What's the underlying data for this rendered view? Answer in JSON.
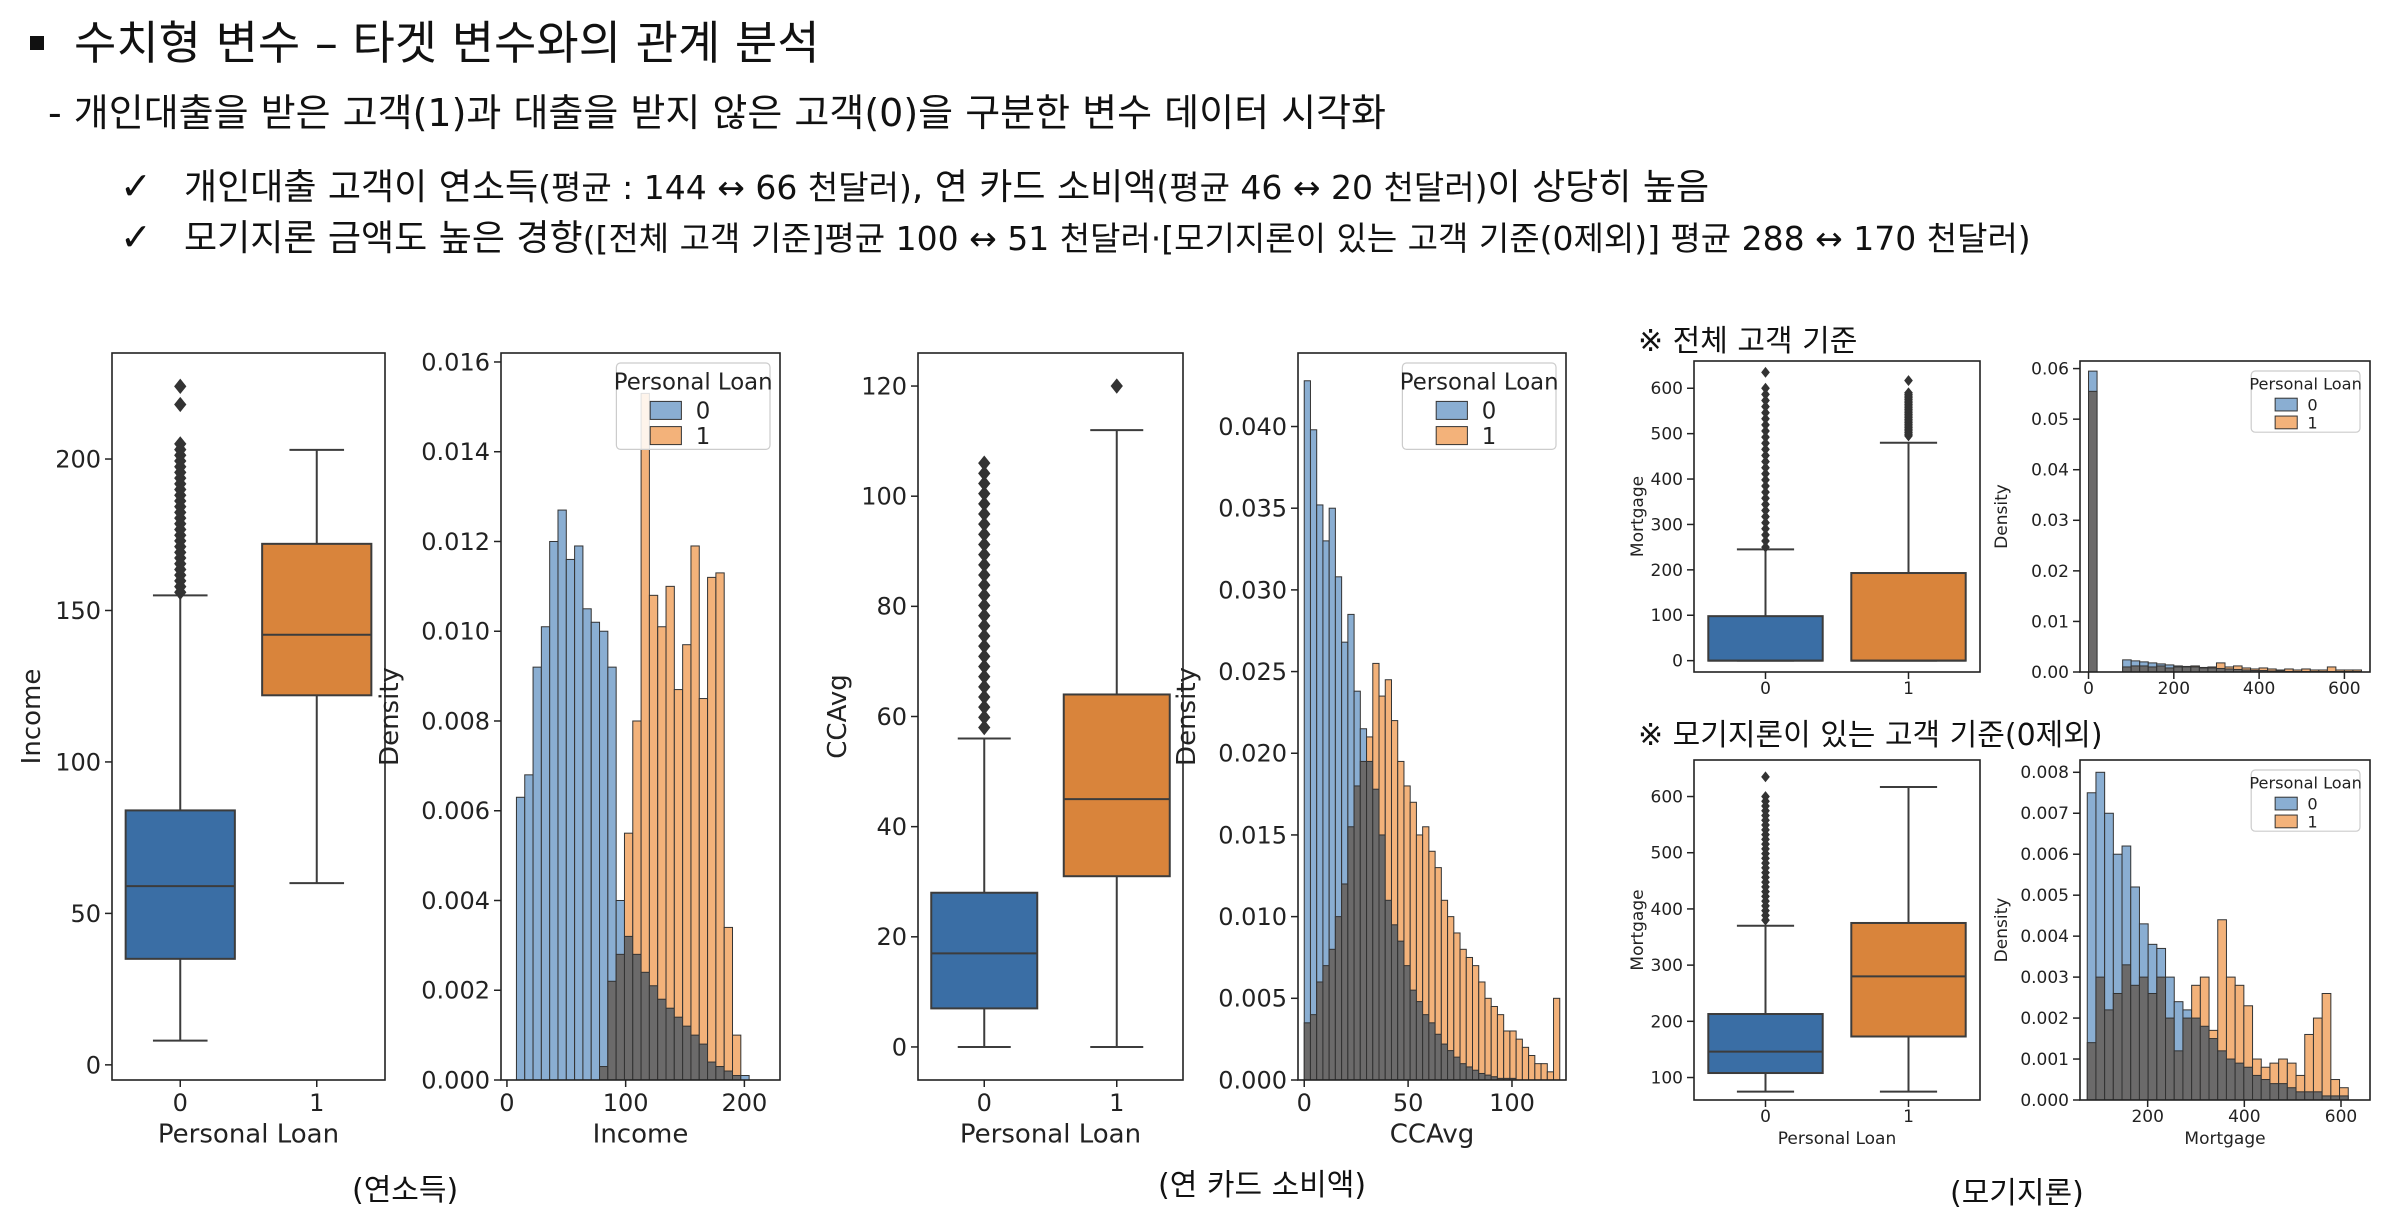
{
  "header": {
    "title": "수치형 변수 – 타겟 변수와의 관계 분석",
    "subtitle": "- 개인대출을 받은 고객(1)과 대출을 받지 않은 고객(0)을 구분한 변수 데이터 시각화",
    "check1_main": "개인대출 고객이 연소득",
    "check1_detail1": "(평균 : 144 ↔ 66 천달러)",
    "check1_mid": ", 연 카드 소비액",
    "check1_detail2": "(평균 46 ↔ 20 천달러)",
    "check1_end": "이 상당히 높음",
    "check2_main": "모기지론 금액도 높은 경향",
    "check2_detail": "([전체 고객 기준]평균 100 ↔ 51 천달러·[모기지론이 있는 고객 기준(0제외)] 평균 288 ↔ 170 천달러)"
  },
  "captions": {
    "income": "(연소득)",
    "ccavg": "(연 카드 소비액)",
    "mortgage": "(모기지론)",
    "note_all": "※ 전체 고객 기준",
    "note_nonzero": "※ 모기지론이 있는 고객 기준(0제외)"
  },
  "colors": {
    "blue_box": "#3a6ea5",
    "orange_box": "#d9843b",
    "blue_hist": "#8aaed2",
    "orange_hist": "#f3b27a",
    "overlap": "#6b6a6a"
  },
  "chart_data": [
    {
      "id": "income-box",
      "type": "box",
      "xlabel": "Personal Loan",
      "ylabel": "Income",
      "categories": [
        "0",
        "1"
      ],
      "ylim": [
        -5,
        235
      ],
      "yticks": [
        0,
        50,
        100,
        150,
        200
      ],
      "boxes": [
        {
          "category": "0",
          "whisker_low": 8,
          "q1": 35,
          "median": 59,
          "q3": 84,
          "whisker_high": 155,
          "outliers_from": 156,
          "outliers_to": 205,
          "top_outliers": [
            218,
            224
          ]
        },
        {
          "category": "1",
          "whisker_low": 60,
          "q1": 122,
          "median": 142,
          "q3": 172,
          "whisker_high": 203,
          "outliers_from": null,
          "outliers_to": null,
          "top_outliers": []
        }
      ]
    },
    {
      "id": "income-hist",
      "type": "histogram",
      "xlabel": "Income",
      "ylabel": "Density",
      "xlim": [
        -5,
        230
      ],
      "ylim": [
        0,
        0.0162
      ],
      "xticks": [
        0,
        100,
        200
      ],
      "yticks": [
        0.0,
        0.002,
        0.004,
        0.006,
        0.008,
        0.01,
        0.012,
        0.014,
        0.016
      ],
      "bin_start": 8,
      "bin_width": 7,
      "legend": {
        "title": "Personal Loan",
        "entries": [
          "0",
          "1"
        ],
        "position": "top-right"
      },
      "series": [
        {
          "name": "0",
          "values": [
            0.0063,
            0.0068,
            0.0092,
            0.0101,
            0.012,
            0.0127,
            0.0116,
            0.0119,
            0.0105,
            0.0102,
            0.01,
            0.0092,
            0.004,
            0.0032,
            0.0028,
            0.0024,
            0.0021,
            0.0018,
            0.0016,
            0.0014,
            0.0012,
            0.001,
            0.0008,
            0.0004,
            0.0003,
            0.0002,
            0.0001,
            0.0001
          ]
        },
        {
          "name": "1",
          "values": [
            0,
            0,
            0,
            0,
            0,
            0,
            0,
            0,
            0,
            0,
            0.0003,
            0.0022,
            0.0028,
            0.0055,
            0.008,
            0.0153,
            0.0108,
            0.0101,
            0.011,
            0.0087,
            0.0097,
            0.0119,
            0.0085,
            0.0112,
            0.0113,
            0.0034,
            0.001,
            0
          ]
        }
      ]
    },
    {
      "id": "ccavg-box",
      "type": "box",
      "xlabel": "Personal Loan",
      "ylabel": "CCAvg",
      "categories": [
        "0",
        "1"
      ],
      "ylim": [
        -6,
        126
      ],
      "yticks": [
        0,
        20,
        40,
        60,
        80,
        100,
        120
      ],
      "boxes": [
        {
          "category": "0",
          "whisker_low": 0,
          "q1": 7,
          "median": 17,
          "q3": 28,
          "whisker_high": 56,
          "outliers_from": 58,
          "outliers_to": 106,
          "top_outliers": []
        },
        {
          "category": "1",
          "whisker_low": 0,
          "q1": 31,
          "median": 45,
          "q3": 64,
          "whisker_high": 112,
          "outliers_from": null,
          "outliers_to": null,
          "top_outliers": [
            120
          ]
        }
      ]
    },
    {
      "id": "ccavg-hist",
      "type": "histogram",
      "xlabel": "CCAvg",
      "ylabel": "Density",
      "xlim": [
        -3,
        126
      ],
      "ylim": [
        0,
        0.0445
      ],
      "xticks": [
        0,
        50,
        100
      ],
      "yticks": [
        0.0,
        0.005,
        0.01,
        0.015,
        0.02,
        0.025,
        0.03,
        0.035,
        0.04
      ],
      "bin_start": 0,
      "bin_width": 3,
      "legend": {
        "title": "Personal Loan",
        "entries": [
          "0",
          "1"
        ],
        "position": "top-right"
      },
      "series": [
        {
          "name": "0",
          "values": [
            0.0428,
            0.0398,
            0.0352,
            0.033,
            0.035,
            0.0308,
            0.0268,
            0.0285,
            0.0238,
            0.0215,
            0.0195,
            0.0178,
            0.015,
            0.011,
            0.0095,
            0.0085,
            0.007,
            0.0055,
            0.0048,
            0.004,
            0.0035,
            0.0028,
            0.0022,
            0.0018,
            0.0014,
            0.001,
            0.0008,
            0.0006,
            0.0004,
            0.0003,
            0.0002,
            0.0001,
            0.0001,
            0.0001,
            0.0,
            0.0,
            0.0,
            0.0,
            0.0,
            0.0,
            0.0
          ]
        },
        {
          "name": "1",
          "values": [
            0.0035,
            0.004,
            0.006,
            0.007,
            0.008,
            0.01,
            0.012,
            0.0155,
            0.018,
            0.0195,
            0.021,
            0.0255,
            0.0235,
            0.0245,
            0.022,
            0.0195,
            0.018,
            0.017,
            0.015,
            0.0155,
            0.014,
            0.013,
            0.011,
            0.01,
            0.009,
            0.008,
            0.0075,
            0.007,
            0.006,
            0.005,
            0.0045,
            0.004,
            0.003,
            0.003,
            0.0025,
            0.002,
            0.0015,
            0.001,
            0.001,
            0.0005,
            0.005
          ]
        }
      ]
    },
    {
      "id": "mortgage-all-box",
      "type": "box",
      "xlabel": "",
      "ylabel": "Mortgage",
      "categories": [
        "0",
        "1"
      ],
      "ylim": [
        -25,
        660
      ],
      "yticks": [
        0,
        100,
        200,
        300,
        400,
        500,
        600
      ],
      "boxes": [
        {
          "category": "0",
          "whisker_low": 0,
          "q1": 0,
          "median": 0,
          "q3": 98,
          "whisker_high": 245,
          "outliers_from": 250,
          "outliers_to": 600,
          "top_outliers": [
            635
          ]
        },
        {
          "category": "1",
          "whisker_low": 0,
          "q1": 0,
          "median": 0,
          "q3": 193,
          "whisker_high": 480,
          "outliers_from": 495,
          "outliers_to": 590,
          "top_outliers": [
            617
          ]
        }
      ]
    },
    {
      "id": "mortgage-all-hist",
      "type": "histogram",
      "xlabel": "",
      "ylabel": "Density",
      "xlim": [
        -20,
        660
      ],
      "ylim": [
        0,
        0.0615
      ],
      "xticks": [
        0,
        200,
        400,
        600
      ],
      "yticks": [
        0.0,
        0.01,
        0.02,
        0.03,
        0.04,
        0.05,
        0.06
      ],
      "bin_start": 0,
      "bin_width": 20,
      "legend": {
        "title": "Personal Loan",
        "entries": [
          "0",
          "1"
        ],
        "position": "top-right"
      },
      "series": [
        {
          "name": "0",
          "values": [
            0.0595,
            0,
            0,
            0,
            0.0024,
            0.0022,
            0.002,
            0.0018,
            0.0016,
            0.0014,
            0.0012,
            0.0011,
            0.001,
            0.0009,
            0.0008,
            0.0007,
            0.0006,
            0.0005,
            0.0004,
            0.0003,
            0.0003,
            0.0002,
            0.0002,
            0.0001,
            0.0001,
            0.0001,
            0.0001,
            0.0001,
            0.0001,
            0.0001,
            0.0001,
            0.0001
          ]
        },
        {
          "name": "1",
          "values": [
            0.0555,
            0,
            0,
            0,
            0.001,
            0.0012,
            0.0012,
            0.001,
            0.0012,
            0.0008,
            0.001,
            0.001,
            0.0012,
            0.0008,
            0.001,
            0.0018,
            0.001,
            0.0012,
            0.0008,
            0.0006,
            0.0008,
            0.0006,
            0.0004,
            0.0006,
            0.0004,
            0.0006,
            0.0004,
            0.0004,
            0.001,
            0.0004,
            0.0004,
            0.0004
          ]
        }
      ]
    },
    {
      "id": "mortgage-nonzero-box",
      "type": "box",
      "xlabel": "Personal Loan",
      "ylabel": "Mortgage",
      "categories": [
        "0",
        "1"
      ],
      "ylim": [
        60,
        665
      ],
      "yticks": [
        100,
        200,
        300,
        400,
        500,
        600
      ],
      "boxes": [
        {
          "category": "0",
          "whisker_low": 75,
          "q1": 108,
          "median": 146,
          "q3": 213,
          "whisker_high": 370,
          "outliers_from": 380,
          "outliers_to": 600,
          "top_outliers": [
            635
          ]
        },
        {
          "category": "1",
          "whisker_low": 75,
          "q1": 173,
          "median": 280,
          "q3": 375,
          "whisker_high": 617,
          "outliers_from": null,
          "outliers_to": null,
          "top_outliers": []
        }
      ]
    },
    {
      "id": "mortgage-nonzero-hist",
      "type": "histogram",
      "xlabel": "Mortgage",
      "ylabel": "Density",
      "xlim": [
        60,
        660
      ],
      "ylim": [
        0,
        0.0083
      ],
      "xticks": [
        200,
        400,
        600
      ],
      "yticks": [
        0.0,
        0.001,
        0.002,
        0.003,
        0.004,
        0.005,
        0.006,
        0.007,
        0.008
      ],
      "bin_start": 75,
      "bin_width": 18,
      "legend": {
        "title": "Personal Loan",
        "entries": [
          "0",
          "1"
        ],
        "position": "top-right"
      },
      "series": [
        {
          "name": "0",
          "values": [
            0.0075,
            0.008,
            0.007,
            0.006,
            0.0062,
            0.0052,
            0.0043,
            0.0038,
            0.0037,
            0.003,
            0.0024,
            0.0022,
            0.002,
            0.0018,
            0.0015,
            0.0012,
            0.001,
            0.0009,
            0.0008,
            0.0006,
            0.0005,
            0.0004,
            0.0004,
            0.0003,
            0.0002,
            0.0002,
            0.0002,
            0.0001,
            0.0001,
            0.0001
          ]
        },
        {
          "name": "1",
          "values": [
            0.0014,
            0.003,
            0.0022,
            0.0026,
            0.0033,
            0.0028,
            0.003,
            0.0026,
            0.003,
            0.002,
            0.0012,
            0.002,
            0.0028,
            0.003,
            0.0017,
            0.0044,
            0.003,
            0.0028,
            0.0023,
            0.001,
            0.0008,
            0.0009,
            0.001,
            0.0009,
            0.0006,
            0.0016,
            0.002,
            0.0026,
            0.0005,
            0.0003
          ]
        }
      ]
    }
  ]
}
